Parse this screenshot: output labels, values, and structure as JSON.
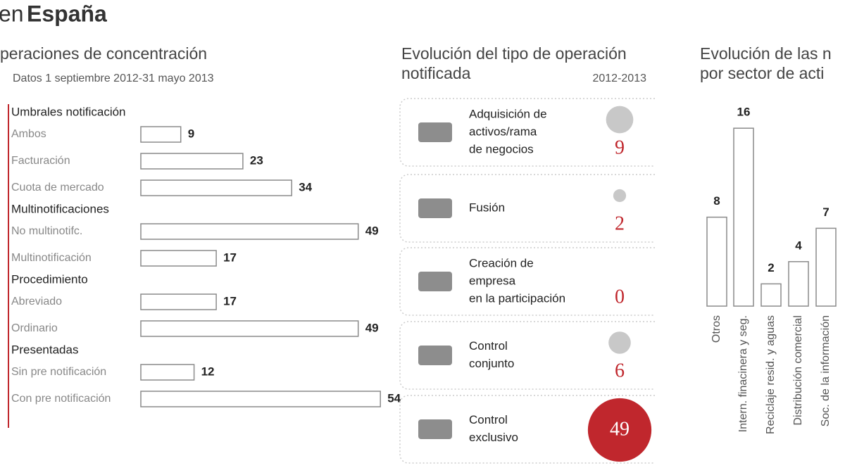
{
  "heading": {
    "lead": "en",
    "bold": "España"
  },
  "chart_data": [
    {
      "type": "bar",
      "orientation": "horizontal",
      "title": "peraciones de concentración",
      "subtitle": "Datos 1 septiembre  2012-31 mayo 2013",
      "color": "#ffffff",
      "edge_color": "#8a8a8a",
      "accent_color": "#c0272d",
      "groups": [
        {
          "name": "Umbrales notificación",
          "categories": [
            "Ambos",
            "Facturación",
            "Cuota de mercado"
          ],
          "values": [
            9,
            23,
            34
          ]
        },
        {
          "name": "Multinotificaciones",
          "categories": [
            "No multinotifc.",
            "Multinotificación"
          ],
          "values": [
            49,
            17
          ]
        },
        {
          "name": "Procedimiento",
          "categories": [
            "Abreviado",
            "Ordinario"
          ],
          "values": [
            17,
            49
          ]
        },
        {
          "name": "Presentadas",
          "categories": [
            "Sin pre notificación",
            "Con pre notificación"
          ],
          "values": [
            12,
            54
          ]
        }
      ]
    },
    {
      "type": "bubble",
      "title": [
        "Evolución del tipo de operación",
        "notificada"
      ],
      "subtitle": "2012-2013",
      "color": "#c8c8c8",
      "highlight_color": "#c0272d",
      "value_color": "#c0272d",
      "items": [
        {
          "label": [
            "Adquisición de",
            "activos/rama",
            "de negocios"
          ],
          "value": 9
        },
        {
          "label": [
            "Fusión"
          ],
          "value": 2
        },
        {
          "label": [
            "Creación de",
            "empresa",
            "en la participación"
          ],
          "value": 0
        },
        {
          "label": [
            "Control",
            "conjunto"
          ],
          "value": 6
        },
        {
          "label": [
            "Control",
            "exclusivo"
          ],
          "value": 49
        }
      ]
    },
    {
      "type": "bar",
      "orientation": "vertical",
      "title": [
        "Evolución de las n",
        "por sector de acti"
      ],
      "color": "#ffffff",
      "edge_color": "#8a8a8a",
      "categories": [
        "Otros",
        "Intern. finacinera y seg.",
        "Reciclaje resid. y aguas",
        "Distribución comercial",
        "Soc. de la información"
      ],
      "values": [
        8,
        16,
        2,
        4,
        7
      ]
    }
  ]
}
